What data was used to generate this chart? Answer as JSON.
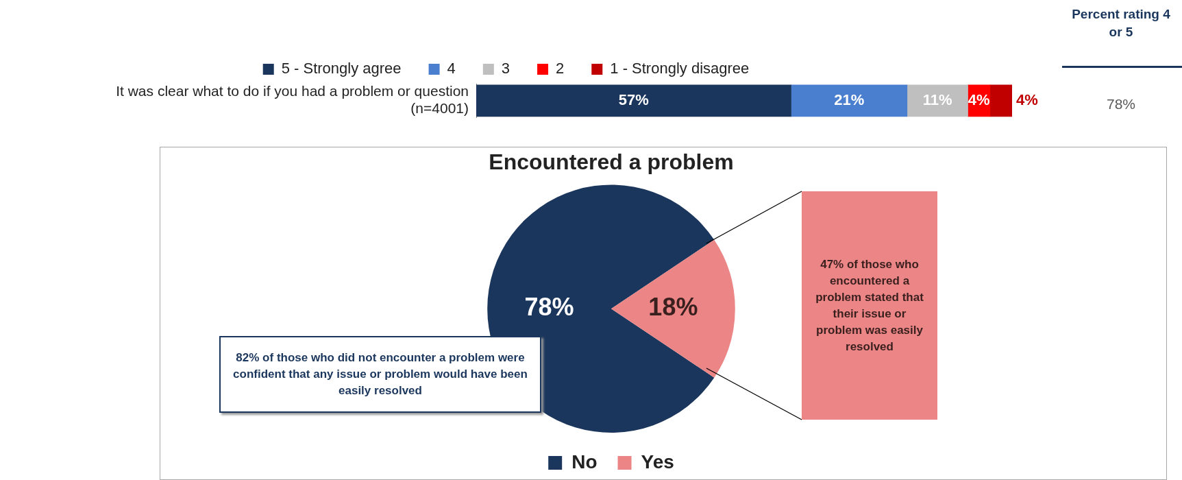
{
  "chart_data": [
    {
      "type": "bar",
      "orientation": "horizontal",
      "stacked": true,
      "tick_labels": "y",
      "legend": "top",
      "categories": [
        "It was clear what to do if you had a problem or question\n(n=4001)"
      ],
      "series": [
        {
          "name": "5 - Strongly agree",
          "color": "#1b365d",
          "values": [
            57
          ],
          "value_labels": [
            "57%"
          ]
        },
        {
          "name": "4",
          "color": "#4a7fcf",
          "values": [
            21
          ],
          "value_labels": [
            "21%"
          ]
        },
        {
          "name": "3",
          "color": "#bfbfbf",
          "values": [
            11
          ],
          "value_labels": [
            "11%"
          ]
        },
        {
          "name": "2",
          "color": "#ff0000",
          "values": [
            4
          ],
          "value_labels": [
            "4%"
          ]
        },
        {
          "name": "1 - Strongly disagree",
          "color": "#c00000",
          "values": [
            4
          ],
          "value_labels": [
            "4%"
          ]
        }
      ],
      "annotations": [
        "Percent rating 4 or 5",
        "78%"
      ]
    },
    {
      "type": "pie",
      "title": "Encountered a problem",
      "legend": "bottom",
      "categories": [
        "No",
        "Yes"
      ],
      "values": [
        78,
        18
      ],
      "colors": [
        "#1b365d",
        "#ec8585"
      ],
      "value_labels": [
        "78%",
        "18%"
      ],
      "annotations": [
        "82% of those who did not encounter a problem were confident that any issue or problem would have been easily resolved",
        "47% of those who encountered a problem stated that their issue or problem was easily resolved"
      ]
    }
  ]
}
